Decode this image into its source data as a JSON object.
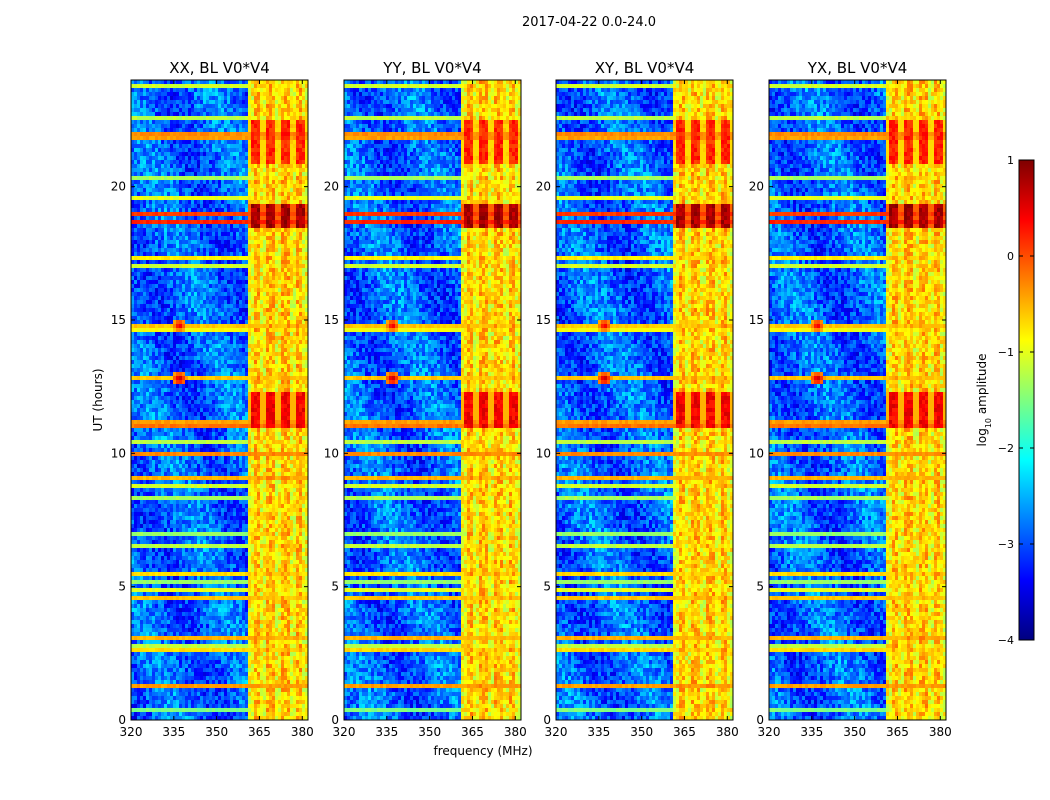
{
  "figure": {
    "suptitle": "2017-04-22 0.0-24.0",
    "xlabel": "frequency (MHz)",
    "ylabel": "UT (hours)"
  },
  "colorbar": {
    "label_prefix": "log",
    "label_sub": "10",
    "label_suffix": " amplitude",
    "ticks": [
      1,
      0,
      -1,
      -2,
      -3,
      -4
    ],
    "tick_labels": [
      "1",
      "0",
      "−1",
      "−2",
      "−3",
      "−4"
    ],
    "range": [
      -4,
      1
    ],
    "colormap": "jet"
  },
  "chart_data": {
    "type": "heatmap",
    "x_range_mhz": [
      320,
      382
    ],
    "y_range_hours": [
      0,
      24
    ],
    "x_ticks": [
      320,
      335,
      350,
      365,
      380
    ],
    "y_ticks": [
      0,
      5,
      10,
      15,
      20
    ],
    "value_units": "log10 amplitude",
    "panels": [
      {
        "title": "XX, BL V0*V4",
        "show_ylabels": true
      },
      {
        "title": "YY, BL V0*V4",
        "show_ylabels": true
      },
      {
        "title": "XY, BL V0*V4",
        "show_ylabels": true
      },
      {
        "title": "YX, BL V0*V4",
        "show_ylabels": true
      }
    ],
    "background_level": -2.9,
    "high_band_mhz": [
      361,
      382
    ],
    "high_band_level": -0.9,
    "high_band_peaks_mhz": [
      364,
      369,
      374,
      379
    ],
    "horizontal_rfi": [
      {
        "t": 0.4,
        "level": -1.5
      },
      {
        "t": 1.3,
        "level": -0.4
      },
      {
        "t": 1.5,
        "level": -0.3
      },
      {
        "t": 1.8,
        "level": -1.3
      },
      {
        "t": 2.6,
        "level": -0.7
      },
      {
        "t": 2.8,
        "level": -1.2
      },
      {
        "t": 3.1,
        "level": -0.5
      },
      {
        "t": 3.3,
        "level": -0.9
      },
      {
        "t": 3.6,
        "level": -0.4
      },
      {
        "t": 4.2,
        "level": -1.2
      },
      {
        "t": 4.6,
        "level": -0.6
      },
      {
        "t": 4.9,
        "level": -1.0
      },
      {
        "t": 5.2,
        "level": -1.4
      },
      {
        "t": 5.5,
        "level": -0.7
      },
      {
        "t": 6.0,
        "level": -1.3
      },
      {
        "t": 6.5,
        "level": -1.2
      },
      {
        "t": 7.0,
        "level": -1.4
      },
      {
        "t": 7.5,
        "level": -1.0
      },
      {
        "t": 7.8,
        "level": -0.6
      },
      {
        "t": 8.3,
        "level": -1.3
      },
      {
        "t": 8.8,
        "level": -1.1
      },
      {
        "t": 9.1,
        "level": -0.5
      },
      {
        "t": 9.6,
        "level": -1.3
      },
      {
        "t": 10.0,
        "level": -0.3
      },
      {
        "t": 10.4,
        "level": -1.2
      },
      {
        "t": 11.0,
        "level": -0.2
      },
      {
        "t": 11.2,
        "level": -0.4
      },
      {
        "t": 12.0,
        "level": -1.1
      },
      {
        "t": 12.6,
        "level": -0.9
      },
      {
        "t": 12.8,
        "level": -0.6
      },
      {
        "t": 13.2,
        "level": -1.2
      },
      {
        "t": 13.8,
        "level": -1.3
      },
      {
        "t": 14.6,
        "level": -0.9
      },
      {
        "t": 14.8,
        "level": -0.6
      },
      {
        "t": 15.3,
        "level": -1.2
      },
      {
        "t": 15.6,
        "level": -0.2
      },
      {
        "t": 15.9,
        "level": -0.1
      },
      {
        "t": 16.5,
        "level": -1.3
      },
      {
        "t": 17.0,
        "level": -1.1
      },
      {
        "t": 17.3,
        "level": -0.8
      },
      {
        "t": 18.0,
        "level": -1.2
      },
      {
        "t": 18.7,
        "level": 0.2
      },
      {
        "t": 19.0,
        "level": 0.1
      },
      {
        "t": 19.6,
        "level": -1.0
      },
      {
        "t": 20.3,
        "level": -1.3
      },
      {
        "t": 21.3,
        "level": -1.2
      },
      {
        "t": 21.8,
        "level": -0.4
      },
      {
        "t": 22.0,
        "level": -0.3
      },
      {
        "t": 22.6,
        "level": -1.2
      },
      {
        "t": 23.1,
        "level": -0.6
      },
      {
        "t": 23.4,
        "level": -0.5
      },
      {
        "t": 23.8,
        "level": -1.1
      }
    ],
    "bright_time_bands": [
      {
        "t0": 18.4,
        "t1": 19.4,
        "level": 0.8
      },
      {
        "t0": 10.9,
        "t1": 12.3,
        "level": 0.4
      },
      {
        "t0": 20.8,
        "t1": 22.5,
        "level": 0.2
      }
    ],
    "point_sources": [
      {
        "t": 12.8,
        "f": 337,
        "level": 0.8
      },
      {
        "t": 14.8,
        "f": 337,
        "level": 0.6
      }
    ]
  }
}
